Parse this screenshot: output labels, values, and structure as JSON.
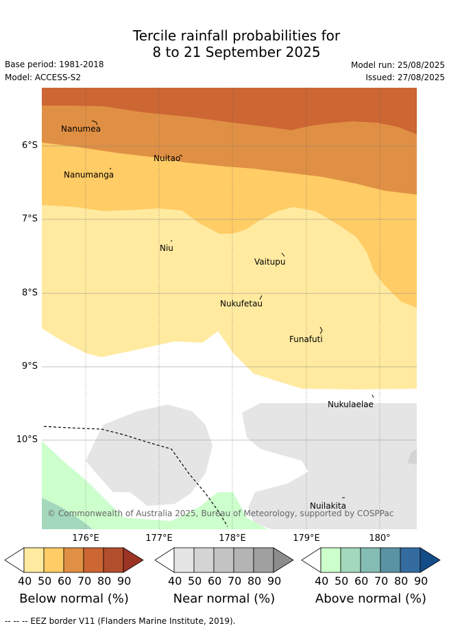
{
  "title_line1": "Tercile rainfall probabilities for",
  "title_line2": "8 to 21 September 2025",
  "base_period": "Base period: 1981-2018",
  "model": "Model: ACCESS-S2",
  "model_run": "Model run: 25/08/2025",
  "issued": "Issued: 27/08/2025",
  "copyright": "© Commonwealth of Australia 2025, Bureau of Meteorology, supported by COSPPac",
  "lat_labels": [
    "6°S",
    "7°S",
    "8°S",
    "9°S",
    "10°S"
  ],
  "lon_labels": [
    "176°E",
    "177°E",
    "178°E",
    "179°E",
    "180°"
  ],
  "places": [
    {
      "name": "Nanumea"
    },
    {
      "name": "Nuitao"
    },
    {
      "name": "Nanumanga"
    },
    {
      "name": "Niu"
    },
    {
      "name": "Vaitupu"
    },
    {
      "name": "Nukufetau"
    },
    {
      "name": "Funafuti"
    },
    {
      "name": "Nukulaelae"
    },
    {
      "name": "Nuilakita"
    }
  ],
  "colorbars": [
    {
      "title": "Below normal (%)",
      "ticks": [
        "40",
        "50",
        "60",
        "70",
        "80",
        "90"
      ],
      "colors": [
        "#ffffff",
        "#ffeaa0",
        "#ffcc66",
        "#e09044",
        "#cc6633",
        "#b24e2c",
        "#9c3424"
      ]
    },
    {
      "title": "Near normal (%)",
      "ticks": [
        "40",
        "50",
        "60",
        "70",
        "80",
        "90"
      ],
      "colors": [
        "#ffffff",
        "#e5e5e5",
        "#d4d4d4",
        "#c4c4c4",
        "#b4b4b4",
        "#a0a0a0",
        "#8c8c8c"
      ]
    },
    {
      "title": "Above normal (%)",
      "ticks": [
        "40",
        "50",
        "60",
        "70",
        "80",
        "90"
      ],
      "colors": [
        "#ffffff",
        "#ccffcc",
        "#a4d8bc",
        "#84bcb4",
        "#5a94a4",
        "#346ca0",
        "#144c88"
      ]
    }
  ],
  "footnote": "--  --  -- EEZ border V11 (Flanders Marine Institute, 2019)."
}
